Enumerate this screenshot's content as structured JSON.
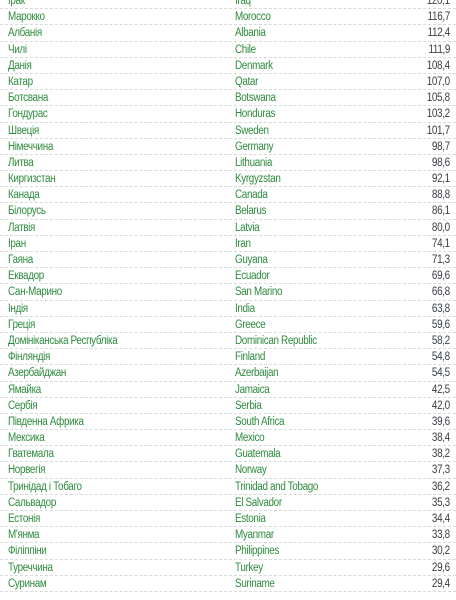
{
  "table": {
    "rows": [
      {
        "ua": "Ірак",
        "en": "Iraq",
        "value": "120,1"
      },
      {
        "ua": "Марокко",
        "en": "Morocco",
        "value": "116,7"
      },
      {
        "ua": "Албанія",
        "en": "Albania",
        "value": "112,4"
      },
      {
        "ua": "Чилі",
        "en": "Chile",
        "value": "111,9"
      },
      {
        "ua": "Данія",
        "en": "Denmark",
        "value": "108,4"
      },
      {
        "ua": "Катар",
        "en": "Qatar",
        "value": "107,0"
      },
      {
        "ua": "Ботсвана",
        "en": "Botswana",
        "value": "105,8"
      },
      {
        "ua": "Гондурас",
        "en": "Honduras",
        "value": "103,2"
      },
      {
        "ua": "Швеція",
        "en": "Sweden",
        "value": "101,7"
      },
      {
        "ua": "Німеччина",
        "en": "Germany",
        "value": "98,7"
      },
      {
        "ua": "Литва",
        "en": "Lithuania",
        "value": "98,6"
      },
      {
        "ua": "Киргизстан",
        "en": "Kyrgyzstan",
        "value": "92,1"
      },
      {
        "ua": "Канада",
        "en": "Canada",
        "value": "88,8"
      },
      {
        "ua": "Білорусь",
        "en": "Belarus",
        "value": "86,1"
      },
      {
        "ua": "Латвія",
        "en": "Latvia",
        "value": "80,0"
      },
      {
        "ua": "Іран",
        "en": "Iran",
        "value": "74,1"
      },
      {
        "ua": "Гаяна",
        "en": "Guyana",
        "value": "71,3"
      },
      {
        "ua": "Еквадор",
        "en": "Ecuador",
        "value": "69,6"
      },
      {
        "ua": "Сан-Марино",
        "en": "San Marino",
        "value": "66,8"
      },
      {
        "ua": "Індія",
        "en": "India",
        "value": "63,8"
      },
      {
        "ua": "Греція",
        "en": "Greece",
        "value": "59,6"
      },
      {
        "ua": "Домініканська Республіка",
        "en": "Dominican Republic",
        "value": "58,2"
      },
      {
        "ua": "Фінляндія",
        "en": "Finland",
        "value": "54,8"
      },
      {
        "ua": "Азербайджан",
        "en": "Azerbaijan",
        "value": "54,5"
      },
      {
        "ua": "Ямайка",
        "en": "Jamaica",
        "value": "42,5"
      },
      {
        "ua": "Сербія",
        "en": "Serbia",
        "value": "42,0"
      },
      {
        "ua": "Південна Африка",
        "en": "South Africa",
        "value": "39,6"
      },
      {
        "ua": "Мексика",
        "en": "Mexico",
        "value": "38,4"
      },
      {
        "ua": "Гватемала",
        "en": "Guatemala",
        "value": "38,2"
      },
      {
        "ua": "Норвегія",
        "en": "Norway",
        "value": "37,3"
      },
      {
        "ua": "Тринідад і Тобаго",
        "en": "Trinidad and Tobago",
        "value": "36,2"
      },
      {
        "ua": "Сальвадор",
        "en": "El Salvador",
        "value": "35,3"
      },
      {
        "ua": "Естонія",
        "en": "Estonia",
        "value": "34,4"
      },
      {
        "ua": "М'янма",
        "en": "Myanmar",
        "value": "33,8"
      },
      {
        "ua": "Філіппіни",
        "en": "Philippines",
        "value": "30,2"
      },
      {
        "ua": "Туреччина",
        "en": "Turkey",
        "value": "29,6"
      },
      {
        "ua": "Суринам",
        "en": "Suriname",
        "value": "29,4"
      }
    ]
  },
  "colors": {
    "country_text": "#2e8b3e",
    "value_text": "#3a3f44",
    "row_divider": "#d6dbd8"
  }
}
